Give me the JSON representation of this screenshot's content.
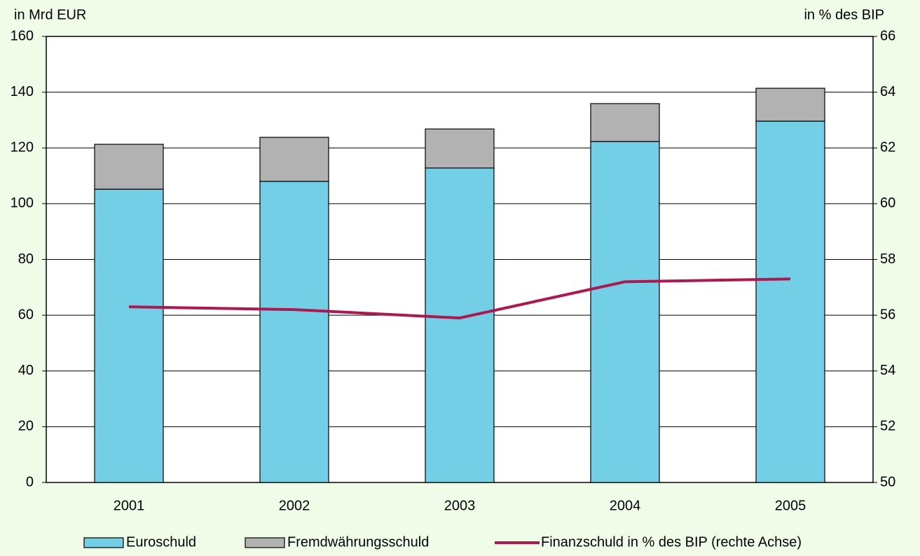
{
  "chart_data": {
    "type": "bar",
    "stacked": true,
    "y_label": "in Mrd EUR",
    "y2_label": "in % des BIP",
    "categories": [
      "2001",
      "2002",
      "2003",
      "2004",
      "2005"
    ],
    "series": [
      {
        "name": "Euroschuld",
        "color": "#72cfe6",
        "values": [
          105.2,
          108.0,
          112.8,
          122.3,
          129.6
        ]
      },
      {
        "name": "Fremdwährungsschuld",
        "color": "#b2b2b2",
        "values": [
          16.1,
          15.8,
          14.0,
          13.6,
          11.8
        ]
      },
      {
        "name": "Finanzschuld in % des BIP (rechte Achse)",
        "color": "#b0174f",
        "type": "line",
        "axis": "y2",
        "values": [
          56.3,
          56.2,
          55.9,
          57.2,
          57.3
        ]
      }
    ],
    "ylim": [
      0,
      160
    ],
    "yticks": [
      0,
      20,
      40,
      60,
      80,
      100,
      120,
      140,
      160
    ],
    "y2lim": [
      50,
      66
    ],
    "y2ticks": [
      50,
      52,
      54,
      56,
      58,
      60,
      62,
      64,
      66
    ],
    "grid": true,
    "legend": "bottom"
  }
}
